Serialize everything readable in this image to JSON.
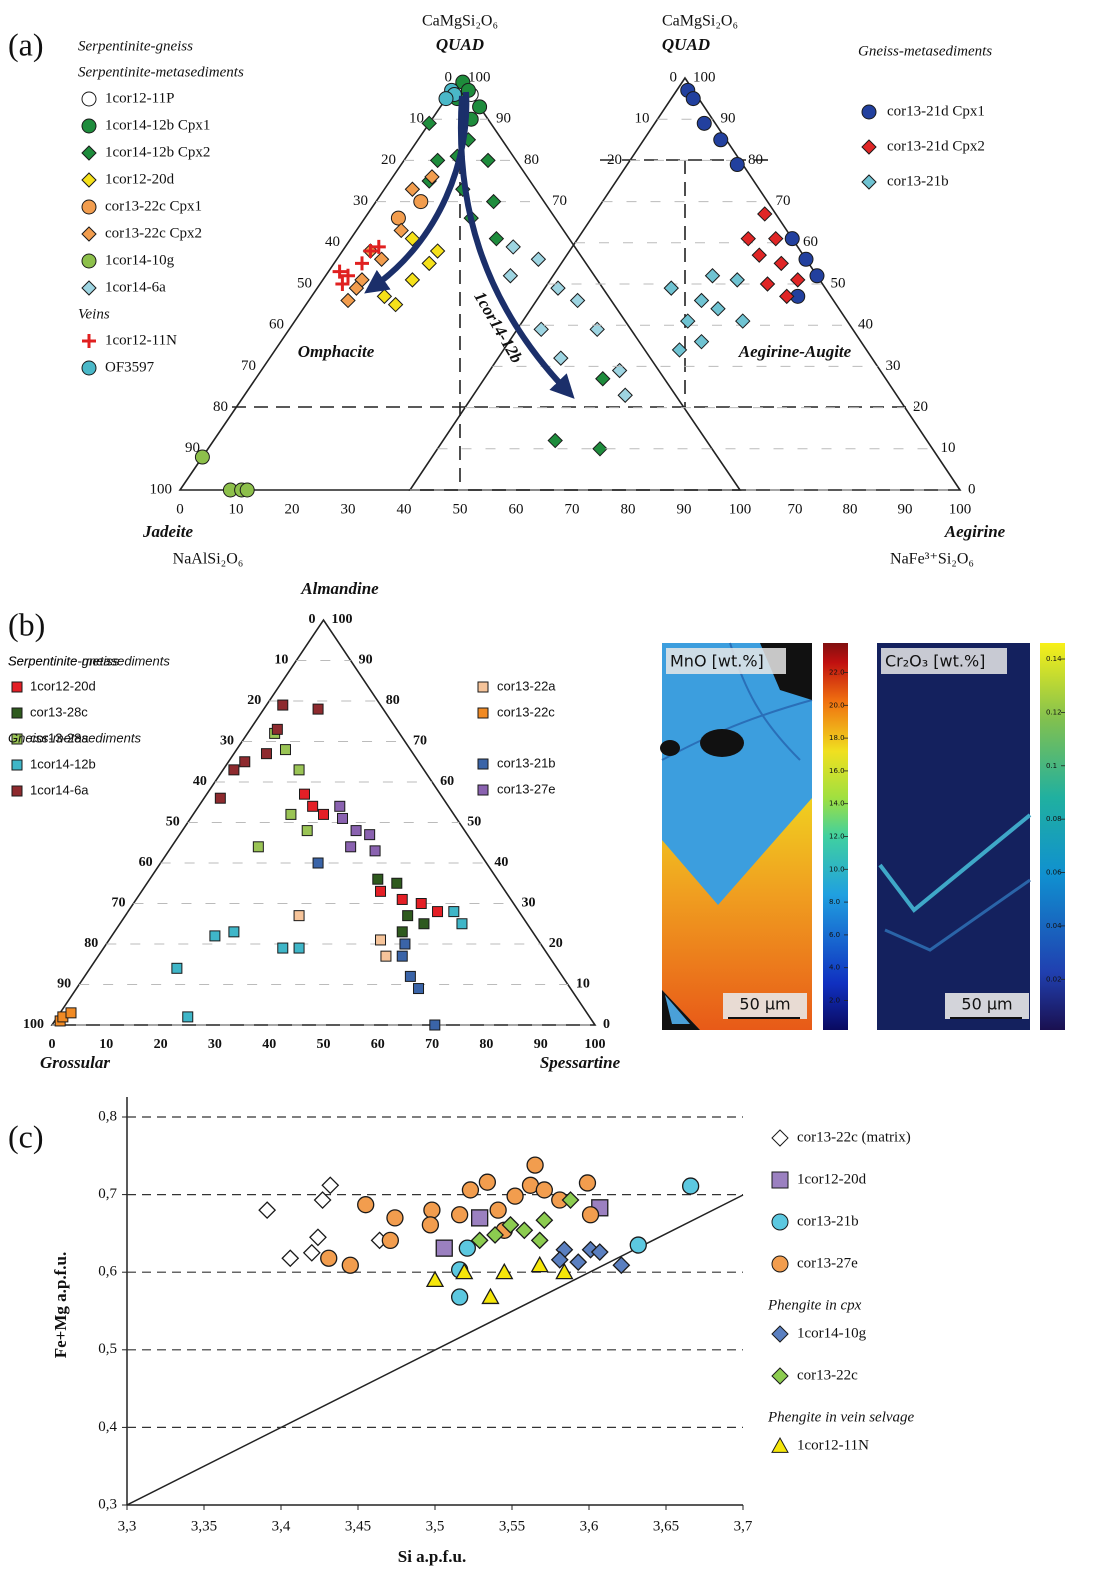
{
  "chart_data": [
    {
      "type": "ternary",
      "panel": "(a)",
      "top_formula": "CaMgSi₂O₆",
      "top_label": "QUAD",
      "left_label": "Jadeite",
      "left_formula": "NaAlSi₂O₆",
      "field_label": "Omphacite",
      "arrow_label": "1cor14-12b",
      "lticks": [
        0,
        10,
        20,
        30,
        40,
        50,
        60,
        70,
        80,
        90,
        100
      ],
      "rticks": [
        100,
        90,
        80,
        70
      ],
      "xticks": [
        0,
        10,
        20,
        30,
        40,
        50,
        60,
        70,
        80,
        90,
        100
      ],
      "series": [
        {
          "name": "1cor12-11P",
          "group": [
            "Serpentinite-gneiss",
            "Serpentinite-metasediments"
          ],
          "marker": "circle",
          "color": "#ffffff",
          "values": [
            97,
            96
          ],
          "x": [
            2,
            4
          ]
        },
        {
          "name": "1cor14-12b Cpx1",
          "marker": "circle",
          "color": "#1e8c3c",
          "values": [
            99,
            97,
            93,
            90,
            95
          ],
          "x": [
            1,
            3,
            7,
            7,
            2
          ]
        },
        {
          "name": "1cor14-12b Cpx2",
          "marker": "diamond",
          "color": "#1e8c3c",
          "values": [
            89,
            80,
            85,
            80,
            73,
            66,
            61,
            70,
            75,
            81,
            27,
            12,
            10
          ],
          "x": [
            0,
            6,
            9,
            15,
            14,
            19,
            26,
            21,
            7,
            9,
            62,
            61,
            70
          ]
        },
        {
          "name": "1cor12-20d",
          "marker": "diamond",
          "color": "#f5e11a",
          "values": [
            61,
            55,
            45,
            58,
            51,
            47
          ],
          "x": [
            11,
            17,
            16,
            17,
            16,
            13
          ]
        },
        {
          "name": "cor13-22c Cpx1",
          "marker": "circle",
          "color": "#f29d4e",
          "values": [
            66,
            70
          ],
          "x": [
            6,
            8
          ]
        },
        {
          "name": "cor13-22c Cpx2",
          "marker": "diamond",
          "color": "#f29d4e",
          "values": [
            46,
            51,
            56,
            63,
            73,
            76,
            58,
            49
          ],
          "x": [
            7,
            7,
            8,
            8,
            5,
            7,
            5,
            7
          ]
        },
        {
          "name": "1cor14-10g",
          "marker": "circle",
          "color": "#8dc04b",
          "values": [
            8,
            0,
            0,
            0
          ],
          "x": [
            0,
            9,
            11,
            12
          ]
        },
        {
          "name": "1cor14-6a",
          "marker": "diamond",
          "color": "#9ed5e2",
          "values": [
            59,
            56,
            49,
            46,
            39,
            39,
            29,
            32,
            23,
            52
          ],
          "x": [
            30,
            36,
            43,
            48,
            45,
            55,
            64,
            52,
            68,
            33
          ]
        },
        {
          "name": "1cor12-11N",
          "group": "Veins",
          "marker": "plus",
          "color": "#e02020",
          "values": [
            53,
            52,
            55,
            58,
            59,
            50
          ],
          "x": [
            2,
            4,
            5,
            5,
            6,
            4
          ]
        },
        {
          "name": "OF3597",
          "marker": "circle",
          "color": "#4ab8c8",
          "values": [
            97,
            96,
            95
          ],
          "x": [
            0,
            1,
            0
          ]
        }
      ]
    },
    {
      "type": "ternary",
      "top_formula": "CaMgSi₂O₆",
      "top_label": "QUAD",
      "right_label": "Aegirine",
      "right_formula": "NaFe³⁺Si₂O₆",
      "field_label": "Aegirine-Augite",
      "lticks": [
        0,
        10,
        20
      ],
      "rticks": [
        100,
        90,
        80,
        70,
        60,
        50,
        40,
        30,
        20,
        10,
        0
      ],
      "xticks": [
        70,
        80,
        90,
        100
      ],
      "series": [
        {
          "name": "cor13-21d Cpx1",
          "group": "Gneiss-metasediments",
          "marker": "circle",
          "color": "#22409e",
          "values": [
            97,
            95,
            89,
            85,
            79,
            61,
            56,
            52,
            47
          ],
          "x": [
            2,
            4,
            9,
            14,
            20,
            39,
            44,
            48,
            47
          ]
        },
        {
          "name": "cor13-21d Cpx2",
          "marker": "diamond",
          "color": "#e02626",
          "values": [
            67,
            61,
            57,
            55,
            51,
            50,
            47,
            61
          ],
          "x": [
            31,
            36,
            35,
            40,
            45,
            40,
            45,
            31
          ]
        },
        {
          "name": "cor13-21b",
          "marker": "diamond",
          "color": "#6fc3d2",
          "values": [
            49,
            46,
            44,
            41,
            41,
            34,
            36,
            52,
            51
          ],
          "x": [
            23,
            30,
            34,
            30,
            40,
            32,
            35,
            29,
            34
          ]
        }
      ]
    },
    {
      "type": "ternary",
      "panel": "(b)",
      "top_label": "Almandine",
      "left_label": "Grossular",
      "right_label": "Spessartine",
      "lticks": [
        0,
        10,
        20,
        30,
        40,
        50,
        60,
        70,
        80,
        90,
        100
      ],
      "rticks": [
        100,
        90,
        80,
        70,
        60,
        50,
        40,
        30,
        20,
        10,
        0
      ],
      "xticks": [
        0,
        10,
        20,
        30,
        40,
        50,
        60,
        70,
        80,
        90,
        100
      ],
      "series": [
        {
          "name": "1cor12-20d",
          "group": "Serpentinite-metasediments",
          "marker": "square",
          "color": "#e41f26",
          "values": [
            57,
            54,
            52,
            33,
            31,
            30,
            28
          ],
          "x": [
            18,
            21,
            24,
            44,
            49,
            53,
            57
          ]
        },
        {
          "name": "cor13-28c",
          "marker": "square",
          "color": "#2e5a1e",
          "values": [
            36,
            35,
            27,
            25,
            23
          ],
          "x": [
            42,
            46,
            52,
            56,
            53
          ]
        },
        {
          "name": "cor13-28a",
          "marker": "square",
          "color": "#9ac455",
          "values": [
            72,
            68,
            63,
            52,
            44,
            48
          ],
          "x": [
            5,
            9,
            14,
            18,
            16,
            23
          ]
        },
        {
          "name": "1cor14-12b",
          "marker": "square",
          "color": "#3fb6c8",
          "values": [
            14,
            2,
            22,
            23,
            19,
            19,
            28,
            25
          ],
          "x": [
            16,
            24,
            19,
            22,
            33,
            36,
            60,
            63
          ]
        },
        {
          "name": "1cor14-6a",
          "marker": "square",
          "color": "#8e2a2e",
          "values": [
            63,
            65,
            67,
            73,
            79,
            78,
            56
          ],
          "x": [
            2,
            3,
            6,
            5,
            3,
            10,
            3
          ]
        },
        {
          "name": "cor13-22a",
          "group": "Serpentinite-gneiss",
          "marker": "square",
          "color": "#f6c49a",
          "values": [
            27,
            21,
            17
          ],
          "x": [
            32,
            50,
            53
          ]
        },
        {
          "name": "cor13-22c",
          "marker": "square",
          "color": "#f08a24",
          "values": [
            1,
            2,
            3
          ],
          "x": [
            1,
            1,
            2
          ]
        },
        {
          "name": "cor13-21b",
          "group": "Gneiss-metasediments",
          "marker": "square",
          "color": "#3a64a8",
          "values": [
            40,
            17,
            12,
            9,
            0,
            20
          ],
          "x": [
            29,
            56,
            60,
            63,
            70.5,
            55
          ]
        },
        {
          "name": "cor13-27e",
          "marker": "square",
          "color": "#8a62b0",
          "values": [
            51,
            48,
            47,
            44,
            43,
            54
          ],
          "x": [
            28,
            32,
            35,
            33,
            38,
            26
          ]
        }
      ]
    },
    {
      "type": "map",
      "title": "MnO [wt.%]",
      "scale_bar": "50 µm",
      "clim": [
        0.2,
        23.8
      ],
      "cticks": [
        {
          "value": 2,
          "label": "2.0"
        },
        {
          "value": 4,
          "label": "4.0"
        },
        {
          "value": 6,
          "label": "6.0"
        },
        {
          "value": 8,
          "label": "8.0"
        },
        {
          "value": 10,
          "label": "10.0"
        },
        {
          "value": 12,
          "label": "12.0"
        },
        {
          "value": 14,
          "label": "14.0"
        },
        {
          "value": 16,
          "label": "16.0"
        },
        {
          "value": 18,
          "label": "18.0"
        },
        {
          "value": 20,
          "label": "20.0"
        },
        {
          "value": 22,
          "label": "22.0"
        }
      ]
    },
    {
      "type": "map",
      "title": "Cr₂O₃ [wt.%]",
      "scale_bar": "50 µm",
      "clim": [
        0.001,
        0.146
      ],
      "cticks": [
        0.02,
        0.04,
        0.06,
        0.08,
        0.1,
        0.12,
        0.14
      ]
    },
    {
      "type": "scatter",
      "panel": "(c)",
      "x_label": "Si a.p.f.u.",
      "y_label": "Fe+Mg a.p.f.u.",
      "xlim": [
        3.3,
        3.7
      ],
      "ylim": [
        0.3,
        0.8
      ],
      "grid": true,
      "xticks": [
        {
          "value": 3.3,
          "label": "3,3"
        },
        {
          "value": 3.35,
          "label": "3,35"
        },
        {
          "value": 3.4,
          "label": "3,4"
        },
        {
          "value": 3.45,
          "label": "3,45"
        },
        {
          "value": 3.5,
          "label": "3,5"
        },
        {
          "value": 3.55,
          "label": "3,55"
        },
        {
          "value": 3.6,
          "label": "3,6"
        },
        {
          "value": 3.65,
          "label": "3,65"
        },
        {
          "value": 3.7,
          "label": "3,7"
        }
      ],
      "yticks": [
        {
          "value": 0.3,
          "label": "0,3"
        },
        {
          "value": 0.4,
          "label": "0,4"
        },
        {
          "value": 0.5,
          "label": "0,5"
        },
        {
          "value": 0.6,
          "label": "0,6"
        },
        {
          "value": 0.7,
          "label": "0,7"
        },
        {
          "value": 0.8,
          "label": "0,8"
        }
      ],
      "series": [
        {
          "name": "cor13-22c (matrix)",
          "marker": "diamond",
          "color": "#ffffff",
          "x": [
            3.391,
            3.406,
            3.42,
            3.424,
            3.427,
            3.432,
            3.464
          ],
          "values": [
            0.68,
            0.618,
            0.625,
            0.645,
            0.693,
            0.712,
            0.641
          ]
        },
        {
          "name": "1cor12-20d",
          "marker": "square",
          "color": "#9b80c0",
          "x": [
            3.506,
            3.529,
            3.607
          ],
          "values": [
            0.631,
            0.67,
            0.683
          ]
        },
        {
          "name": "cor13-21b",
          "marker": "circle",
          "color": "#5cc8e0",
          "x": [
            3.516,
            3.516,
            3.521,
            3.632,
            3.666
          ],
          "values": [
            0.603,
            0.568,
            0.631,
            0.635,
            0.711
          ]
        },
        {
          "name": "cor13-27e",
          "marker": "circle",
          "color": "#f29d4e",
          "x": [
            3.445,
            3.431,
            3.455,
            3.474,
            3.498,
            3.497,
            3.516,
            3.523,
            3.534,
            3.541,
            3.552,
            3.562,
            3.565,
            3.571,
            3.581,
            3.599,
            3.601,
            3.545,
            3.471
          ],
          "values": [
            0.609,
            0.618,
            0.687,
            0.67,
            0.68,
            0.661,
            0.674,
            0.706,
            0.716,
            0.68,
            0.698,
            0.712,
            0.738,
            0.706,
            0.693,
            0.715,
            0.674,
            0.654,
            0.641
          ]
        },
        {
          "name": "1cor14-10g",
          "group": "Phengite in cpx",
          "marker": "diamond",
          "color": "#5a7fc0",
          "x": [
            3.584,
            3.593,
            3.601,
            3.607,
            3.621,
            3.581
          ],
          "values": [
            0.629,
            0.613,
            0.629,
            0.626,
            0.609,
            0.616
          ]
        },
        {
          "name": "cor13-22c",
          "marker": "diamond",
          "color": "#8ccc50",
          "x": [
            3.539,
            3.549,
            3.558,
            3.571,
            3.588,
            3.568,
            3.529
          ],
          "values": [
            0.648,
            0.661,
            0.654,
            0.667,
            0.693,
            0.641,
            0.641
          ]
        },
        {
          "name": "1cor12-11N",
          "group": "Phengite in vein selvage",
          "marker": "triangle",
          "color": "#f5e60a",
          "x": [
            3.5,
            3.519,
            3.536,
            3.545,
            3.568,
            3.584
          ],
          "values": [
            0.59,
            0.6,
            0.568,
            0.6,
            0.609,
            0.6
          ]
        }
      ]
    }
  ]
}
